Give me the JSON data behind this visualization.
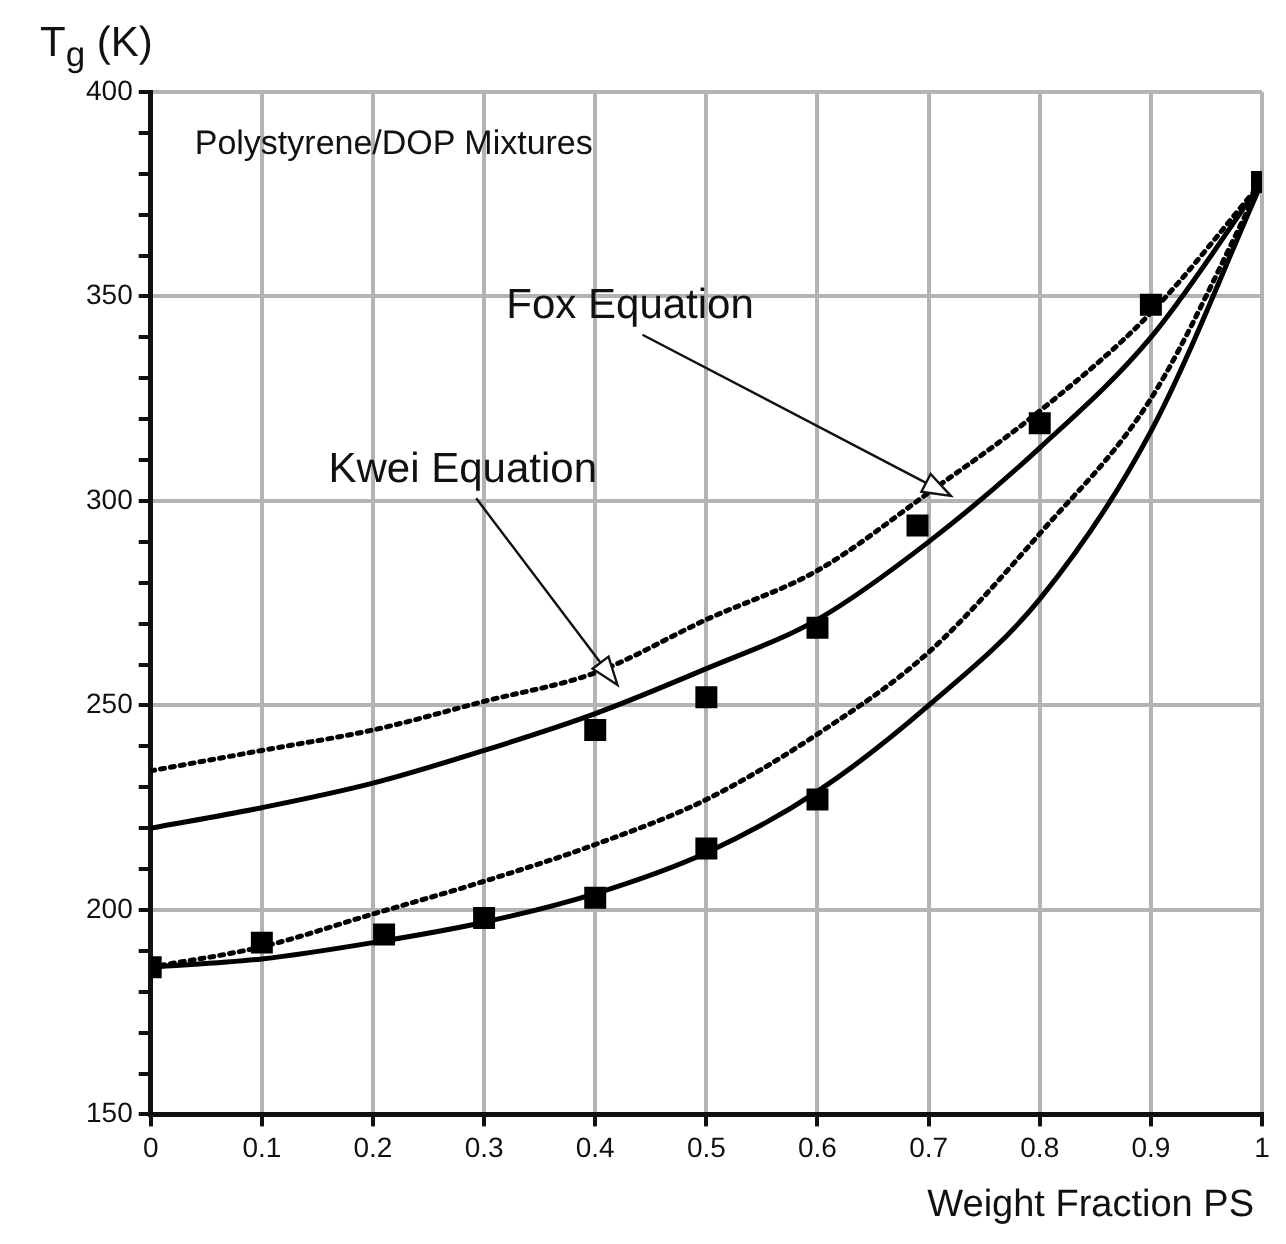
{
  "chart_data": {
    "type": "line",
    "title": "Polystyrene/DOP Mixtures",
    "xlabel": "Weight Fraction PS",
    "ylabel": "T$_{g}$ (K)",
    "xlim": [
      0,
      1
    ],
    "xticks": [
      0,
      0.1,
      0.2,
      0.3,
      0.4,
      0.5,
      0.6,
      0.7,
      0.8,
      0.9,
      1
    ],
    "ylim": [
      150,
      400
    ],
    "yticks": [
      150,
      {
        "value": 160,
        "label": null
      },
      {
        "value": 170,
        "label": null
      },
      {
        "value": 180,
        "label": null
      },
      {
        "value": 190,
        "label": null
      },
      200,
      {
        "value": 210,
        "label": null
      },
      {
        "value": 220,
        "label": null
      },
      {
        "value": 230,
        "label": null
      },
      {
        "value": 240,
        "label": null
      },
      250,
      {
        "value": 260,
        "label": null
      },
      {
        "value": 270,
        "label": null
      },
      {
        "value": 280,
        "label": null
      },
      {
        "value": 290,
        "label": null
      },
      300,
      {
        "value": 310,
        "label": null
      },
      {
        "value": 320,
        "label": null
      },
      {
        "value": 330,
        "label": null
      },
      {
        "value": 340,
        "label": null
      },
      350,
      {
        "value": 360,
        "label": null
      },
      {
        "value": 370,
        "label": null
      },
      {
        "value": 380,
        "label": null
      },
      {
        "value": 390,
        "label": null
      },
      400
    ],
    "grid": true,
    "legend": false,
    "series": [
      {
        "line_style": "dotted",
        "marker": "none",
        "color": "#000000",
        "x": [
          0,
          0.1,
          0.2,
          0.3,
          0.4,
          0.5,
          0.6,
          0.7,
          0.8,
          0.9,
          1
        ],
        "values": [
          234,
          239,
          244,
          251,
          258,
          271,
          283,
          302,
          322,
          346,
          378
        ]
      },
      {
        "line_style": "solid",
        "marker": "none",
        "color": "#000000",
        "x": [
          0,
          0.1,
          0.2,
          0.3,
          0.4,
          0.5,
          0.6,
          0.7,
          0.8,
          0.9,
          1
        ],
        "values": [
          220,
          225,
          231,
          239,
          248,
          259,
          271,
          290,
          313,
          340,
          378
        ]
      },
      {
        "line_style": "dotted",
        "marker": "none",
        "color": "#000000",
        "x": [
          0,
          0.1,
          0.2,
          0.3,
          0.4,
          0.5,
          0.6,
          0.7,
          0.8,
          0.9,
          1
        ],
        "values": [
          186,
          191,
          199,
          207,
          216,
          227,
          243,
          263,
          292,
          325,
          378
        ]
      },
      {
        "line_style": "solid",
        "marker": "none",
        "color": "#000000",
        "x": [
          0,
          0.1,
          0.2,
          0.3,
          0.4,
          0.5,
          0.6,
          0.7,
          0.8,
          0.9,
          1
        ],
        "values": [
          186,
          188,
          192,
          197,
          204,
          214,
          229,
          250,
          276,
          317,
          378
        ]
      },
      {
        "type": "scatter",
        "marker": "square",
        "color": "#000000",
        "x": [
          0,
          0.1,
          0.21,
          0.3,
          0.4,
          0.5,
          0.6
        ],
        "values": [
          186,
          192,
          194,
          198,
          203,
          215,
          227
        ]
      },
      {
        "type": "scatter",
        "marker": "square",
        "color": "#000000",
        "x": [
          0.4,
          0.5,
          0.6,
          0.69,
          0.8,
          0.9,
          1
        ],
        "values": [
          244,
          252,
          269,
          294,
          319,
          348,
          378
        ]
      }
    ],
    "annotations": [
      "Fox Equation",
      "Kwei Equation"
    ]
  }
}
